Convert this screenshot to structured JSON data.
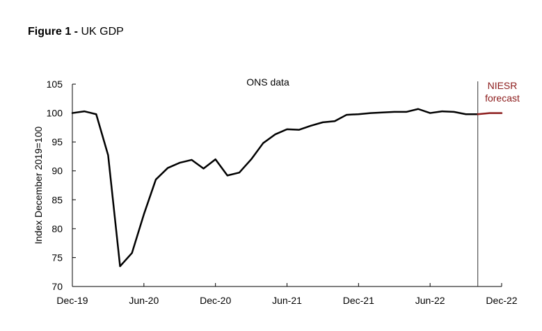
{
  "figure": {
    "number_label": "Figure 1 -",
    "title": "UK GDP"
  },
  "chart_data": {
    "type": "line",
    "ylabel": "Index December 2019=100",
    "xlabel": "",
    "ylim": [
      70,
      105
    ],
    "yticks": [
      70,
      75,
      80,
      85,
      90,
      95,
      100,
      105
    ],
    "ytick_labels": [
      "70",
      "75",
      "80",
      "85",
      "90",
      "95",
      "100",
      "105"
    ],
    "xlim": [
      "Dec-19",
      "Dec-22"
    ],
    "xtick_labels": [
      "Dec-19",
      "Jun-20",
      "Dec-20",
      "Jun-21",
      "Dec-21",
      "Jun-22",
      "Dec-22"
    ],
    "grid": false,
    "annotations": {
      "ons": "ONS data",
      "niesr_line1": "NIESR",
      "niesr_line2": "forecast",
      "forecast_start": "Oct-22"
    },
    "colors": {
      "ons": "#000000",
      "forecast": "#8b1a1a",
      "axis": "#000000"
    },
    "series": [
      {
        "x": [
          "Dec-19",
          "Jan-20",
          "Feb-20",
          "Mar-20",
          "Apr-20",
          "May-20",
          "Jun-20",
          "Jul-20",
          "Aug-20",
          "Sep-20",
          "Oct-20",
          "Nov-20",
          "Dec-20",
          "Jan-21",
          "Feb-21",
          "Mar-21",
          "Apr-21",
          "May-21",
          "Jun-21",
          "Jul-21",
          "Aug-21",
          "Sep-21",
          "Oct-21",
          "Nov-21",
          "Dec-21",
          "Jan-22",
          "Feb-22",
          "Mar-22",
          "Apr-22",
          "May-22",
          "Jun-22",
          "Jul-22",
          "Aug-22",
          "Sep-22",
          "Oct-22"
        ],
        "values": [
          100.0,
          100.3,
          99.8,
          92.7,
          73.5,
          75.8,
          82.5,
          88.5,
          90.5,
          91.4,
          91.9,
          90.4,
          92.0,
          89.2,
          89.7,
          92.0,
          94.8,
          96.3,
          97.2,
          97.1,
          97.8,
          98.4,
          98.6,
          99.7,
          99.8,
          100.0,
          100.1,
          100.2,
          100.2,
          100.7,
          100.0,
          100.3,
          100.2,
          99.8,
          99.8
        ]
      },
      {
        "x": [
          "Oct-22",
          "Nov-22",
          "Dec-22"
        ],
        "values": [
          99.8,
          100.0,
          100.0
        ]
      }
    ]
  }
}
